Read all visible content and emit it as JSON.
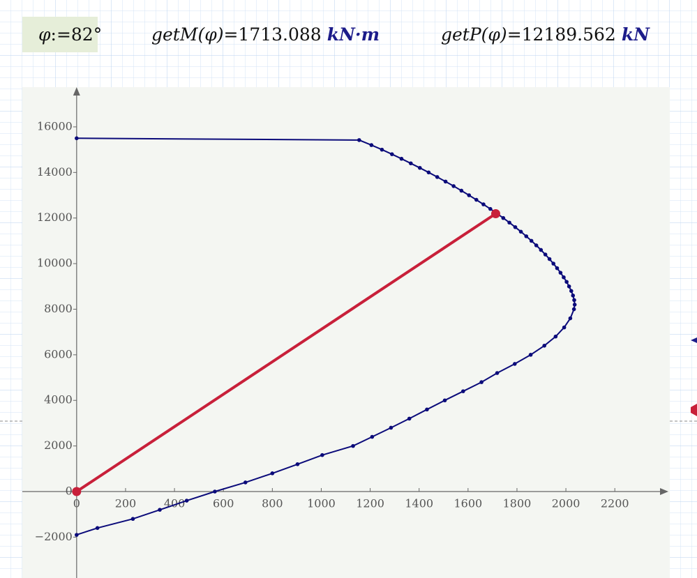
{
  "header": {
    "phi": {
      "lhs": "φ",
      "op": ":=",
      "rhs": "82°"
    },
    "getM": {
      "lhs": "getM(φ)",
      "op": "=",
      "value": "1713.088",
      "unit": "kN·m"
    },
    "getP": {
      "lhs": "getP(φ)",
      "op": "=",
      "value": "12189.562",
      "unit": "kN"
    }
  },
  "chart_data": {
    "type": "line",
    "xlim": [
      -222,
      2419
    ],
    "ylim": [
      -3793,
      17742
    ],
    "xticks": [
      0,
      200,
      400,
      600,
      800,
      1000,
      1200,
      1400,
      1600,
      1800,
      2000,
      2200
    ],
    "yticks": [
      {
        "value": -2000,
        "label": "−2000"
      },
      0,
      2000,
      4000,
      6000,
      8000,
      10000,
      12000,
      14000,
      16000
    ],
    "series": [
      {
        "color": "#0b0b7a",
        "markers": true,
        "x": [
          0,
          1155,
          1205,
          1248,
          1289,
          1328,
          1366,
          1403,
          1439,
          1474,
          1508,
          1541,
          1573,
          1604,
          1634,
          1663,
          1691,
          1718,
          1744,
          1769,
          1793,
          1816,
          1838,
          1859,
          1879,
          1898,
          1916,
          1933,
          1949,
          1964,
          1978,
          1991,
          2003,
          2013,
          2022,
          2029,
          2034,
          2036,
          2033,
          2018,
          1993,
          1958,
          1912,
          1856,
          1791,
          1719,
          1655,
          1580,
          1505,
          1432,
          1360,
          1285,
          1208,
          1130,
          1004,
          903,
          800,
          690,
          565,
          450,
          340,
          230,
          85,
          0
        ],
        "values": [
          15500,
          15420,
          15200,
          15000,
          14800,
          14600,
          14400,
          14200,
          14000,
          13800,
          13600,
          13400,
          13200,
          13000,
          12800,
          12600,
          12400,
          12200,
          12000,
          11800,
          11600,
          11400,
          11200,
          11000,
          10800,
          10600,
          10400,
          10200,
          10000,
          9800,
          9600,
          9400,
          9200,
          9000,
          8800,
          8600,
          8400,
          8200,
          8000,
          7600,
          7200,
          6800,
          6400,
          6000,
          5600,
          5200,
          4800,
          4400,
          4000,
          3600,
          3200,
          2800,
          2400,
          2000,
          1600,
          1200,
          800,
          400,
          0,
          -400,
          -800,
          -1200,
          -1600,
          -1900
        ]
      },
      {
        "color": "#c8203a",
        "markers": false,
        "endpoints": true,
        "x": [
          0,
          1713.088
        ],
        "values": [
          0,
          12189.562
        ]
      }
    ]
  }
}
